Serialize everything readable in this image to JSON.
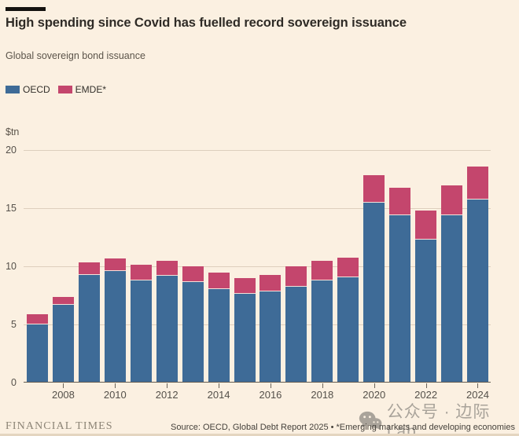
{
  "header": {
    "title": "High spending since Covid has fuelled record sovereign issuance",
    "subtitle": "Global sovereign bond issuance"
  },
  "legend": [
    {
      "label": "OECD",
      "color": "#3e6b97"
    },
    {
      "label": "EMDE*",
      "color": "#c4466d"
    }
  ],
  "chart_data": {
    "type": "bar",
    "stacked": true,
    "title": "High spending since Covid has fuelled record sovereign issuance",
    "subtitle": "Global sovereign bond issuance",
    "ylabel": "$tn",
    "xlabel": "",
    "ylim": [
      0,
      20
    ],
    "y_ticks": [
      0,
      5,
      10,
      15,
      20
    ],
    "grid": "horizontal",
    "legend_position": "top-left",
    "categories": [
      "2007",
      "2008",
      "2009",
      "2010",
      "2011",
      "2012",
      "2013",
      "2014",
      "2015",
      "2016",
      "2017",
      "2018",
      "2019",
      "2020",
      "2021",
      "2022",
      "2023",
      "2024"
    ],
    "x_tick_labels": [
      "2008",
      "2010",
      "2012",
      "2014",
      "2016",
      "2018",
      "2020",
      "2022",
      "2024"
    ],
    "series": [
      {
        "name": "OECD",
        "color": "#3e6b97",
        "values": [
          4.9,
          6.6,
          9.2,
          9.5,
          8.7,
          9.1,
          8.6,
          8.0,
          7.6,
          7.8,
          8.2,
          8.7,
          9.0,
          15.4,
          14.3,
          12.2,
          14.3,
          15.7
        ]
      },
      {
        "name": "EMDE*",
        "color": "#c4466d",
        "values": [
          0.9,
          0.7,
          1.1,
          1.1,
          1.4,
          1.3,
          1.3,
          1.4,
          1.3,
          1.4,
          1.7,
          1.7,
          1.7,
          2.4,
          2.4,
          2.5,
          2.6,
          2.8
        ]
      }
    ]
  },
  "watermark": {
    "icon": "wechat-icon",
    "text": "公众号 · 边际Lab"
  },
  "footer": {
    "brand": "FINANCIAL TIMES",
    "source": "Source: OECD, Global Debt Report 2025 • *Emerging markets and developing economies"
  },
  "colors": {
    "background": "#fbf0e1",
    "oecd_blue": "#3e6b97",
    "emde_crimson": "#c4466d",
    "gridline": "#ddcfbd",
    "baseline": "#635c52",
    "title_text": "#2f2b26",
    "muted_text": "#5b544a",
    "watermark_gray": "#a9a39a"
  }
}
